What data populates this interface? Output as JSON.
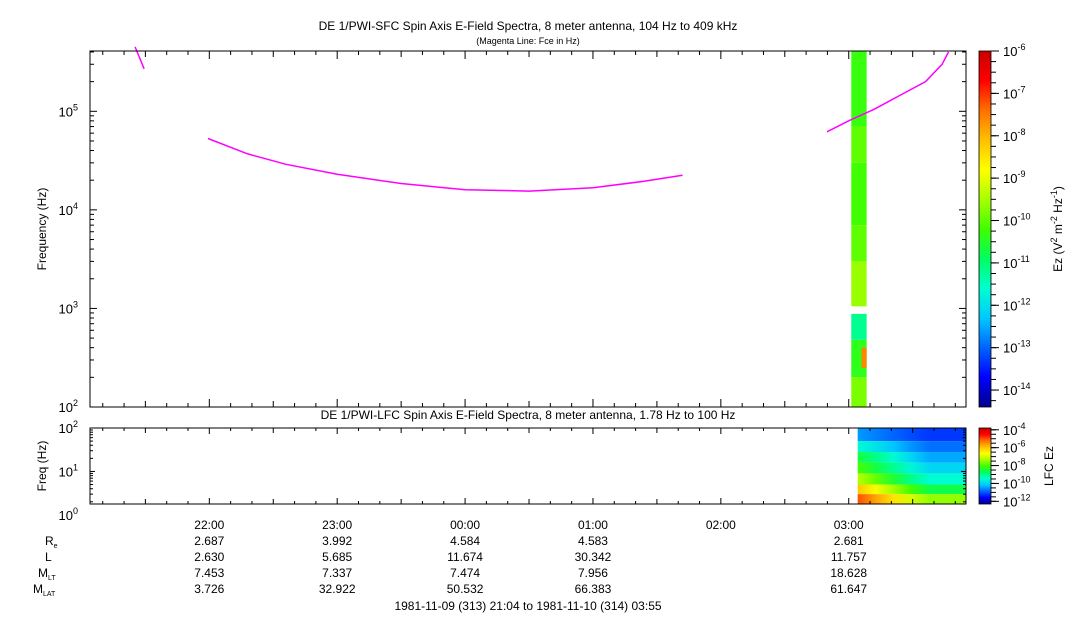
{
  "colors": {
    "fce_line": "#ff00ff",
    "background": "#ffffff",
    "colormap": [
      "#00008c",
      "#0000ff",
      "#0064ff",
      "#00c8ff",
      "#00ffd0",
      "#00ff60",
      "#40ff00",
      "#a8ff00",
      "#ffff00",
      "#ffc000",
      "#ff7000",
      "#ff0000",
      "#c80000"
    ]
  },
  "titles": {
    "upper_title": "DE 1/PWI-SFC  Spin Axis E-Field Spectra, 8 meter antenna, 104 Hz to 409 kHz",
    "upper_subtitle": "(Magenta Line: Fce in Hz)",
    "lower_title": "DE 1/PWI-LFC  Spin Axis E-Field Spectra, 8 meter antenna, 1.78 Hz to 100 Hz",
    "date_range": "1981-11-09 (313) 21:04 to 1981-11-10 (314) 03:55"
  },
  "ephemeris": {
    "rows": [
      {
        "main": "R",
        "sub": "e",
        "values": [
          "2.687",
          "3.992",
          "4.584",
          "4.583",
          "",
          "2.681"
        ]
      },
      {
        "main": "L",
        "sub": "",
        "values": [
          "2.630",
          "5.685",
          "11.674",
          "30.342",
          "",
          "11.757"
        ]
      },
      {
        "main": "M",
        "sub": "LT",
        "values": [
          "7.453",
          "7.337",
          "7.474",
          "7.956",
          "",
          "18.628"
        ]
      },
      {
        "main": "M",
        "sub": "LAT",
        "values": [
          "3.726",
          "32.922",
          "50.532",
          "66.383",
          "",
          "61.647"
        ]
      }
    ]
  },
  "chart_data": [
    {
      "type": "heatmap",
      "title": "DE 1/PWI-SFC  Spin Axis E-Field Spectra, 8 meter antenna, 104 Hz to 409 kHz",
      "subtitle": "(Magenta Line: Fce in Hz)",
      "x_range_hours": [
        21.067,
        27.917
      ],
      "x_ticks": [
        {
          "h": 22,
          "label": "22:00"
        },
        {
          "h": 23,
          "label": "23:00"
        },
        {
          "h": 24,
          "label": "00:00"
        },
        {
          "h": 25,
          "label": "01:00"
        },
        {
          "h": 26,
          "label": "02:00"
        },
        {
          "h": 27,
          "label": "03:00"
        }
      ],
      "ylabel": "Frequency (Hz)",
      "y_scale": "log",
      "y_range": [
        100,
        409000
      ],
      "y_ticks": [
        {
          "exp": 2
        },
        {
          "exp": 3
        },
        {
          "exp": 4
        },
        {
          "exp": 5
        }
      ],
      "colorbar": {
        "label_main": "Ez (V",
        "label_sup1": "2",
        "label_mid": " m",
        "label_sup2": "-2",
        "label_mid2": " Hz",
        "label_sup3": "-1",
        "label_end": ")",
        "range_exp": [
          -14.4,
          -6
        ],
        "tick_exps": [
          -6,
          -7,
          -8,
          -9,
          -10,
          -11,
          -12,
          -13,
          -14
        ]
      },
      "fce_segments": [
        {
          "x": [
            21.42,
            21.49
          ],
          "y": [
            450000,
            270000
          ]
        },
        {
          "x": [
            21.99,
            22.3,
            22.6,
            23.0,
            23.5,
            24.0,
            24.5,
            25.0,
            25.4,
            25.7
          ],
          "y": [
            53000,
            37000,
            29000,
            23000,
            18500,
            16000,
            15500,
            16800,
            19500,
            22500
          ]
        },
        {
          "x": [
            26.83,
            27.0,
            27.2,
            27.4,
            27.6,
            27.73,
            27.78
          ],
          "y": [
            62000,
            80000,
            105000,
            145000,
            200000,
            300000,
            400000
          ]
        }
      ],
      "spectra_blocks": [
        {
          "x": [
            27.02,
            27.14
          ],
          "y": [
            70000,
            409000
          ],
          "log_ez": -10.3
        },
        {
          "x": [
            27.02,
            27.14
          ],
          "y": [
            30000,
            70000
          ],
          "log_ez": -10.0
        },
        {
          "x": [
            27.02,
            27.14
          ],
          "y": [
            7000,
            30000
          ],
          "log_ez": -10.2
        },
        {
          "x": [
            27.02,
            27.14
          ],
          "y": [
            3000,
            7000
          ],
          "log_ez": -10.0
        },
        {
          "x": [
            27.02,
            27.14
          ],
          "y": [
            1050,
            3000
          ],
          "log_ez": -9.6
        },
        {
          "x": [
            27.02,
            27.14
          ],
          "y": [
            480,
            880
          ],
          "log_ez": -11.2
        },
        {
          "x": [
            27.02,
            27.14
          ],
          "y": [
            200,
            480
          ],
          "log_ez": -10.4
        },
        {
          "x": [
            27.02,
            27.14
          ],
          "y": [
            100,
            200
          ],
          "log_ez": -9.8
        },
        {
          "x": [
            27.1,
            27.14
          ],
          "y": [
            250,
            400
          ],
          "log_ez": -7.6
        }
      ]
    },
    {
      "type": "heatmap",
      "title": "DE 1/PWI-LFC  Spin Axis E-Field Spectra, 8 meter antenna, 1.78 Hz to 100 Hz",
      "ylabel": "Freq (Hz)",
      "y_scale": "log",
      "y_range": [
        1.78,
        100
      ],
      "y_ticks": [
        {
          "exp": 0
        },
        {
          "exp": 1
        },
        {
          "exp": 2
        }
      ],
      "x_range_hours": [
        21.067,
        27.917
      ],
      "colorbar": {
        "label": "LFC Ez",
        "range_exp": [
          -12.3,
          -3.8
        ],
        "tick_exps": [
          -4,
          -6,
          -8,
          -10,
          -12
        ]
      },
      "data_x_start_hours": 27.07,
      "bands": [
        {
          "y": [
            50,
            100
          ],
          "log_ez": [
            -10.5,
            -11.2
          ]
        },
        {
          "y": [
            28,
            50
          ],
          "log_ez": [
            -9.5,
            -10.8
          ]
        },
        {
          "y": [
            16,
            28
          ],
          "log_ez": [
            -8.5,
            -10.4
          ]
        },
        {
          "y": [
            9,
            16
          ],
          "log_ez": [
            -8.0,
            -10.0
          ]
        },
        {
          "y": [
            5,
            9
          ],
          "log_ez": [
            -7.2,
            -9.5
          ]
        },
        {
          "y": [
            3,
            5
          ],
          "log_ez": [
            -6.0,
            -8.6
          ]
        },
        {
          "y": [
            1.78,
            3
          ],
          "log_ez": [
            -5.0,
            -7.5
          ]
        }
      ]
    }
  ]
}
